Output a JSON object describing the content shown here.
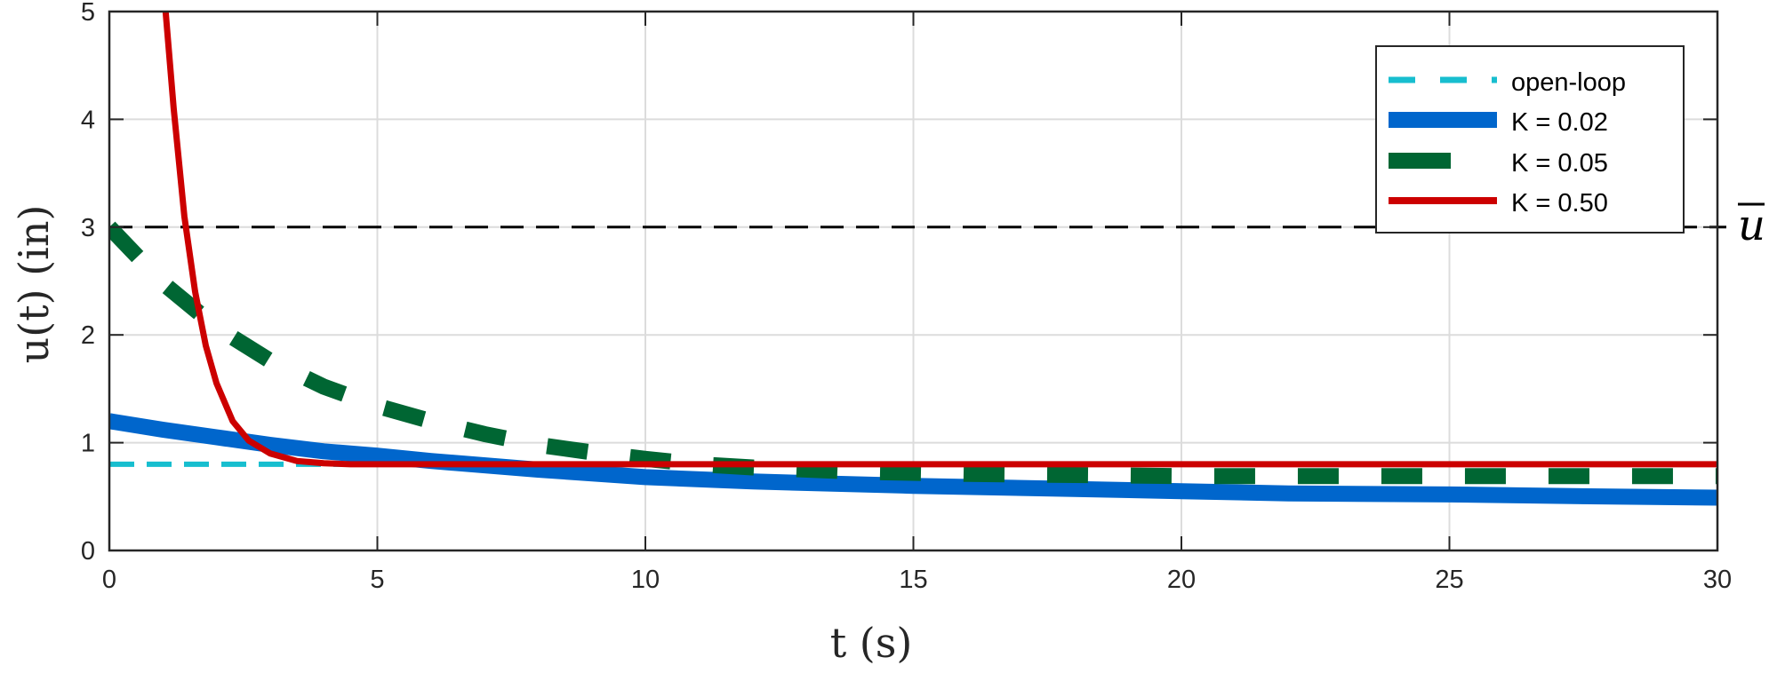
{
  "chart_data": {
    "type": "line",
    "xlabel": "t (s)",
    "ylabel": "u(t) (in)",
    "xlim": [
      0,
      30
    ],
    "ylim": [
      0,
      5
    ],
    "xticks": [
      0,
      5,
      10,
      15,
      20,
      25,
      30
    ],
    "yticks": [
      0,
      1,
      2,
      3,
      4,
      5
    ],
    "grid": true,
    "legend_position": "top-right",
    "reference_line": {
      "y": 3,
      "label": "u",
      "overline": true,
      "style": "dashed",
      "color": "#000000"
    },
    "series": [
      {
        "name": "open-loop",
        "color": "#17BECF",
        "style": "dashed",
        "x": [
          0,
          30
        ],
        "y": [
          0.8,
          0.8
        ]
      },
      {
        "name": "K = 0.02",
        "color": "#0066CC",
        "style": "solid",
        "x": [
          0,
          1,
          2,
          3,
          4,
          5,
          6,
          8,
          10,
          12,
          15,
          18,
          20,
          22,
          25,
          28,
          30
        ],
        "y": [
          1.2,
          1.12,
          1.05,
          0.98,
          0.92,
          0.88,
          0.83,
          0.75,
          0.68,
          0.64,
          0.6,
          0.57,
          0.55,
          0.53,
          0.52,
          0.5,
          0.49
        ]
      },
      {
        "name": "K = 0.05",
        "color": "#006633",
        "style": "dashed",
        "x": [
          0,
          1,
          2,
          3,
          4,
          5,
          6,
          7,
          8,
          9,
          10,
          11,
          12,
          14,
          16,
          18,
          20,
          22,
          25,
          28,
          30
        ],
        "y": [
          3.0,
          2.48,
          2.07,
          1.76,
          1.52,
          1.34,
          1.2,
          1.08,
          0.98,
          0.91,
          0.85,
          0.8,
          0.77,
          0.73,
          0.71,
          0.7,
          0.69,
          0.69,
          0.69,
          0.69,
          0.69
        ]
      },
      {
        "name": "K = 0.50",
        "color": "#CC0000",
        "style": "solid",
        "x": [
          1.05,
          1.2,
          1.4,
          1.6,
          1.8,
          2.0,
          2.3,
          2.6,
          3.0,
          3.5,
          4.0,
          4.5,
          5.0,
          10,
          20,
          30
        ],
        "y": [
          5.0,
          4.1,
          3.1,
          2.4,
          1.9,
          1.55,
          1.2,
          1.02,
          0.9,
          0.83,
          0.81,
          0.8,
          0.8,
          0.8,
          0.8,
          0.8
        ]
      }
    ]
  }
}
